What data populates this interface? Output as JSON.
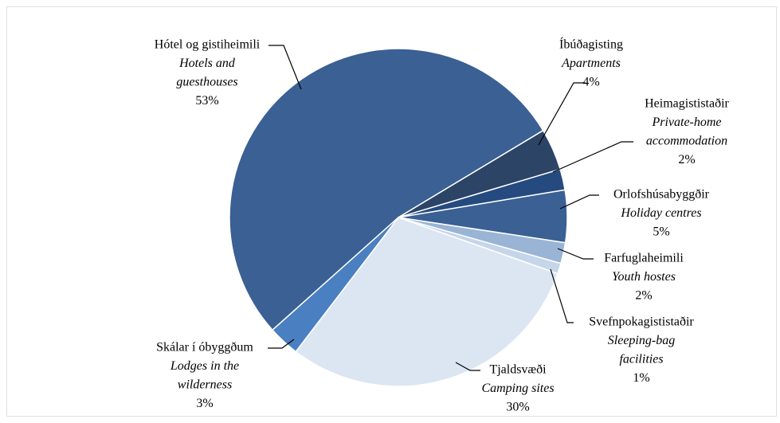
{
  "chart_data": {
    "type": "pie",
    "categories": [
      "Hótel og gistiheimili",
      "Íbúðagisting",
      "Heimagististaðir",
      "Orlofshúsabyggðir",
      "Farfuglaheimili",
      "Svefnpokagististaðir",
      "Tjaldsvæði",
      "Skálar í óbyggðum"
    ],
    "categories_en": [
      [
        "Hotels and",
        "guesthouses"
      ],
      [
        "Apartments"
      ],
      [
        "Private-home",
        "accommodation"
      ],
      [
        "Holiday centres"
      ],
      [
        "Youth hostes"
      ],
      [
        "Sleeping-bag",
        "facilities"
      ],
      [
        "Camping sites"
      ],
      [
        "Lodges in the",
        "wilderness"
      ]
    ],
    "values": [
      53,
      4,
      2,
      5,
      2,
      1,
      30,
      3
    ],
    "value_labels": [
      "53%",
      "4%",
      "2%",
      "5%",
      "2%",
      "1%",
      "30%",
      "3%"
    ],
    "colors": [
      "#3a6094",
      "#2c4466",
      "#254a80",
      "#3a6094",
      "#9ab4d6",
      "#c5d5ea",
      "#dce6f2",
      "#4a7fc1"
    ]
  }
}
